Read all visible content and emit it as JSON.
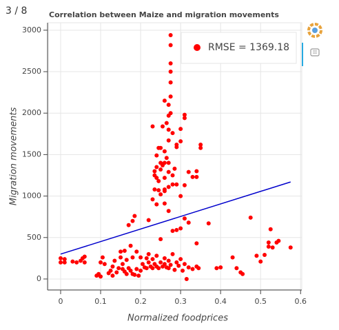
{
  "page_indicator": "3 / 8",
  "chart_data": {
    "type": "scatter",
    "title": "Correlation between Maize and migration movements",
    "x_label": "Normalized foodprices",
    "y_label": "Migration movements",
    "xlim": [
      -0.031,
      0.603
    ],
    "ylim": [
      -125,
      3090
    ],
    "xticks": [
      0,
      0.1,
      0.2,
      0.3,
      0.4,
      0.5,
      0.6
    ],
    "yticks": [
      0,
      500,
      1000,
      1500,
      2000,
      2500,
      3000
    ],
    "grid": true,
    "legend": "top-right",
    "series": [
      {
        "name": "RMSE = 1369.18",
        "color": "#ff0000",
        "type": "scatter",
        "x": [
          0,
          0,
          0.01,
          0.01,
          0.03,
          0.04,
          0.05,
          0.055,
          0.06,
          0.06,
          0.09,
          0.095,
          0.1,
          0.1,
          0.105,
          0.11,
          0.12,
          0.125,
          0.13,
          0.13,
          0.135,
          0.14,
          0.145,
          0.15,
          0.15,
          0.155,
          0.16,
          0.16,
          0.165,
          0.17,
          0.175,
          0.175,
          0.18,
          0.18,
          0.185,
          0.19,
          0.19,
          0.195,
          0.2,
          0.2,
          0.205,
          0.21,
          0.215,
          0.215,
          0.22,
          0.22,
          0.225,
          0.23,
          0.23,
          0.235,
          0.24,
          0.24,
          0.245,
          0.25,
          0.25,
          0.255,
          0.26,
          0.26,
          0.265,
          0.27,
          0.27,
          0.275,
          0.28,
          0.285,
          0.29,
          0.295,
          0.3,
          0.305,
          0.31,
          0.315,
          0.32,
          0.33,
          0.34,
          0.345,
          0.39,
          0.4,
          0.43,
          0.44,
          0.45,
          0.455,
          0.49,
          0.5,
          0.51,
          0.52,
          0.52,
          0.525,
          0.53,
          0.54,
          0.545,
          0.575,
          0.475,
          0.37,
          0.34,
          0.31,
          0.32,
          0.3,
          0.29,
          0.28,
          0.27,
          0.26,
          0.24,
          0.23,
          0.25,
          0.245,
          0.235,
          0.26,
          0.27,
          0.28,
          0.29,
          0.3,
          0.31,
          0.32,
          0.33,
          0.34,
          0.35,
          0.35,
          0.34,
          0.29,
          0.3,
          0.31,
          0.31,
          0.3,
          0.29,
          0.28,
          0.27,
          0.27,
          0.265,
          0.27,
          0.275,
          0.275,
          0.275,
          0.275,
          0.275,
          0.275,
          0.275,
          0.26,
          0.27,
          0.255,
          0.23,
          0.26,
          0.265,
          0.25,
          0.245,
          0.24,
          0.26,
          0.255,
          0.25,
          0.24,
          0.235,
          0.235,
          0.24,
          0.245,
          0.255,
          0.27,
          0.28,
          0.285,
          0.26,
          0.26,
          0.27,
          0.25,
          0.22,
          0.18,
          0.17,
          0.185,
          0.155,
          0.165
        ],
        "values": [
          250,
          200,
          240,
          200,
          210,
          200,
          220,
          250,
          270,
          200,
          40,
          60,
          30,
          200,
          260,
          180,
          70,
          100,
          40,
          150,
          220,
          80,
          130,
          260,
          330,
          180,
          90,
          340,
          230,
          130,
          400,
          100,
          60,
          260,
          50,
          120,
          330,
          40,
          260,
          100,
          180,
          140,
          250,
          130,
          200,
          300,
          150,
          240,
          130,
          180,
          280,
          150,
          130,
          200,
          480,
          150,
          250,
          180,
          140,
          220,
          130,
          170,
          300,
          110,
          200,
          160,
          240,
          100,
          180,
          0,
          140,
          120,
          150,
          130,
          130,
          140,
          260,
          130,
          80,
          60,
          280,
          210,
          290,
          390,
          440,
          600,
          380,
          440,
          460,
          380,
          740,
          670,
          430,
          730,
          680,
          610,
          590,
          580,
          820,
          910,
          900,
          960,
          1020,
          1070,
          1080,
          1060,
          1110,
          1140,
          1140,
          1000,
          1130,
          1290,
          1230,
          1300,
          1620,
          1580,
          1230,
          1590,
          1660,
          1980,
          1940,
          1810,
          1620,
          1760,
          1670,
          1800,
          1880,
          1970,
          2000,
          2200,
          2370,
          2600,
          2500,
          2820,
          2940,
          2150,
          2100,
          1840,
          1840,
          1540,
          1460,
          1580,
          1580,
          1490,
          1400,
          1370,
          1320,
          1350,
          1300,
          1250,
          1220,
          1180,
          1380,
          1400,
          1250,
          1330,
          1080,
          1220,
          1290,
          1400,
          710,
          700,
          650,
          760,
          120,
          60
        ]
      },
      {
        "color": "#0000cc",
        "type": "line",
        "x": [
          0,
          0.575
        ],
        "values": [
          300,
          1170
        ]
      }
    ]
  }
}
